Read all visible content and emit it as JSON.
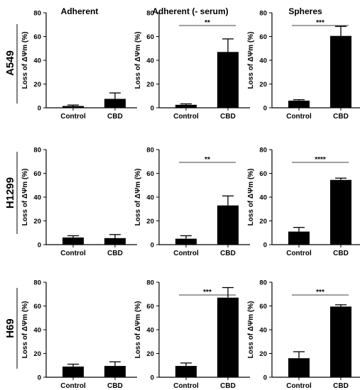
{
  "columns": [
    "Adherent",
    "Adherent (- serum)",
    "Spheres"
  ],
  "rows": [
    "A549",
    "H1299",
    "H69"
  ],
  "colors": {
    "bar": "#000000",
    "axis": "#000000",
    "sig_line": "#000000"
  },
  "chart_data": [
    {
      "type": "bar",
      "row": "A549",
      "column": "Adherent",
      "categories": [
        "Control",
        "CBD"
      ],
      "values": [
        1.5,
        7.5
      ],
      "errors": [
        0.8,
        5.0
      ],
      "ylim": [
        0,
        80
      ],
      "yticks": [
        0,
        20,
        40,
        60,
        80
      ],
      "ylabel": "Loss of ΔΨm (%)",
      "significance": ""
    },
    {
      "type": "bar",
      "row": "A549",
      "column": "Adherent (- serum)",
      "categories": [
        "Control",
        "CBD"
      ],
      "values": [
        2.5,
        47
      ],
      "errors": [
        0.8,
        11
      ],
      "ylim": [
        0,
        80
      ],
      "yticks": [
        0,
        20,
        40,
        60,
        80
      ],
      "ylabel": "Loss of ΔΨm (%)",
      "significance": "**"
    },
    {
      "type": "bar",
      "row": "A549",
      "column": "Spheres",
      "categories": [
        "Control",
        "CBD"
      ],
      "values": [
        6,
        60.5
      ],
      "errors": [
        0.8,
        8
      ],
      "ylim": [
        0,
        80
      ],
      "yticks": [
        0,
        20,
        40,
        60,
        80
      ],
      "ylabel": "Loss of ΔΨm (%)",
      "significance": "***"
    },
    {
      "type": "bar",
      "row": "H1299",
      "column": "Adherent",
      "categories": [
        "Control",
        "CBD"
      ],
      "values": [
        6,
        5.5
      ],
      "errors": [
        1.5,
        3
      ],
      "ylim": [
        0,
        80
      ],
      "yticks": [
        0,
        20,
        40,
        60,
        80
      ],
      "ylabel": "Loss of ΔΨm (%)",
      "significance": ""
    },
    {
      "type": "bar",
      "row": "H1299",
      "column": "Adherent (- serum)",
      "categories": [
        "Control",
        "CBD"
      ],
      "values": [
        5,
        33
      ],
      "errors": [
        2.5,
        8
      ],
      "ylim": [
        0,
        80
      ],
      "yticks": [
        0,
        20,
        40,
        60,
        80
      ],
      "ylabel": "Loss of ΔΨm (%)",
      "significance": "**"
    },
    {
      "type": "bar",
      "row": "H1299",
      "column": "Spheres",
      "categories": [
        "Control",
        "CBD"
      ],
      "values": [
        11,
        54.5
      ],
      "errors": [
        3.5,
        1.5
      ],
      "ylim": [
        0,
        80
      ],
      "yticks": [
        0,
        20,
        40,
        60,
        80
      ],
      "ylabel": "Loss of ΔΨm (%)",
      "significance": "****"
    },
    {
      "type": "bar",
      "row": "H69",
      "column": "Adherent",
      "categories": [
        "Control",
        "CBD"
      ],
      "values": [
        9,
        9.5
      ],
      "errors": [
        2,
        3.5
      ],
      "ylim": [
        0,
        80
      ],
      "yticks": [
        0,
        20,
        40,
        60,
        80
      ],
      "ylabel": "Loss of ΔΨm (%)",
      "significance": ""
    },
    {
      "type": "bar",
      "row": "H69",
      "column": "Adherent (- serum)",
      "categories": [
        "Control",
        "CBD"
      ],
      "values": [
        9.5,
        67
      ],
      "errors": [
        2.5,
        8.5
      ],
      "ylim": [
        0,
        80
      ],
      "yticks": [
        0,
        20,
        40,
        60,
        80
      ],
      "ylabel": "Loss of ΔΨm (%)",
      "significance": "***"
    },
    {
      "type": "bar",
      "row": "H69",
      "column": "Spheres",
      "categories": [
        "Control",
        "CBD"
      ],
      "values": [
        16,
        59.5
      ],
      "errors": [
        5.5,
        1.5
      ],
      "ylim": [
        0,
        80
      ],
      "yticks": [
        0,
        20,
        40,
        60,
        80
      ],
      "ylabel": "Loss of ΔΨm (%)",
      "significance": "***"
    }
  ]
}
